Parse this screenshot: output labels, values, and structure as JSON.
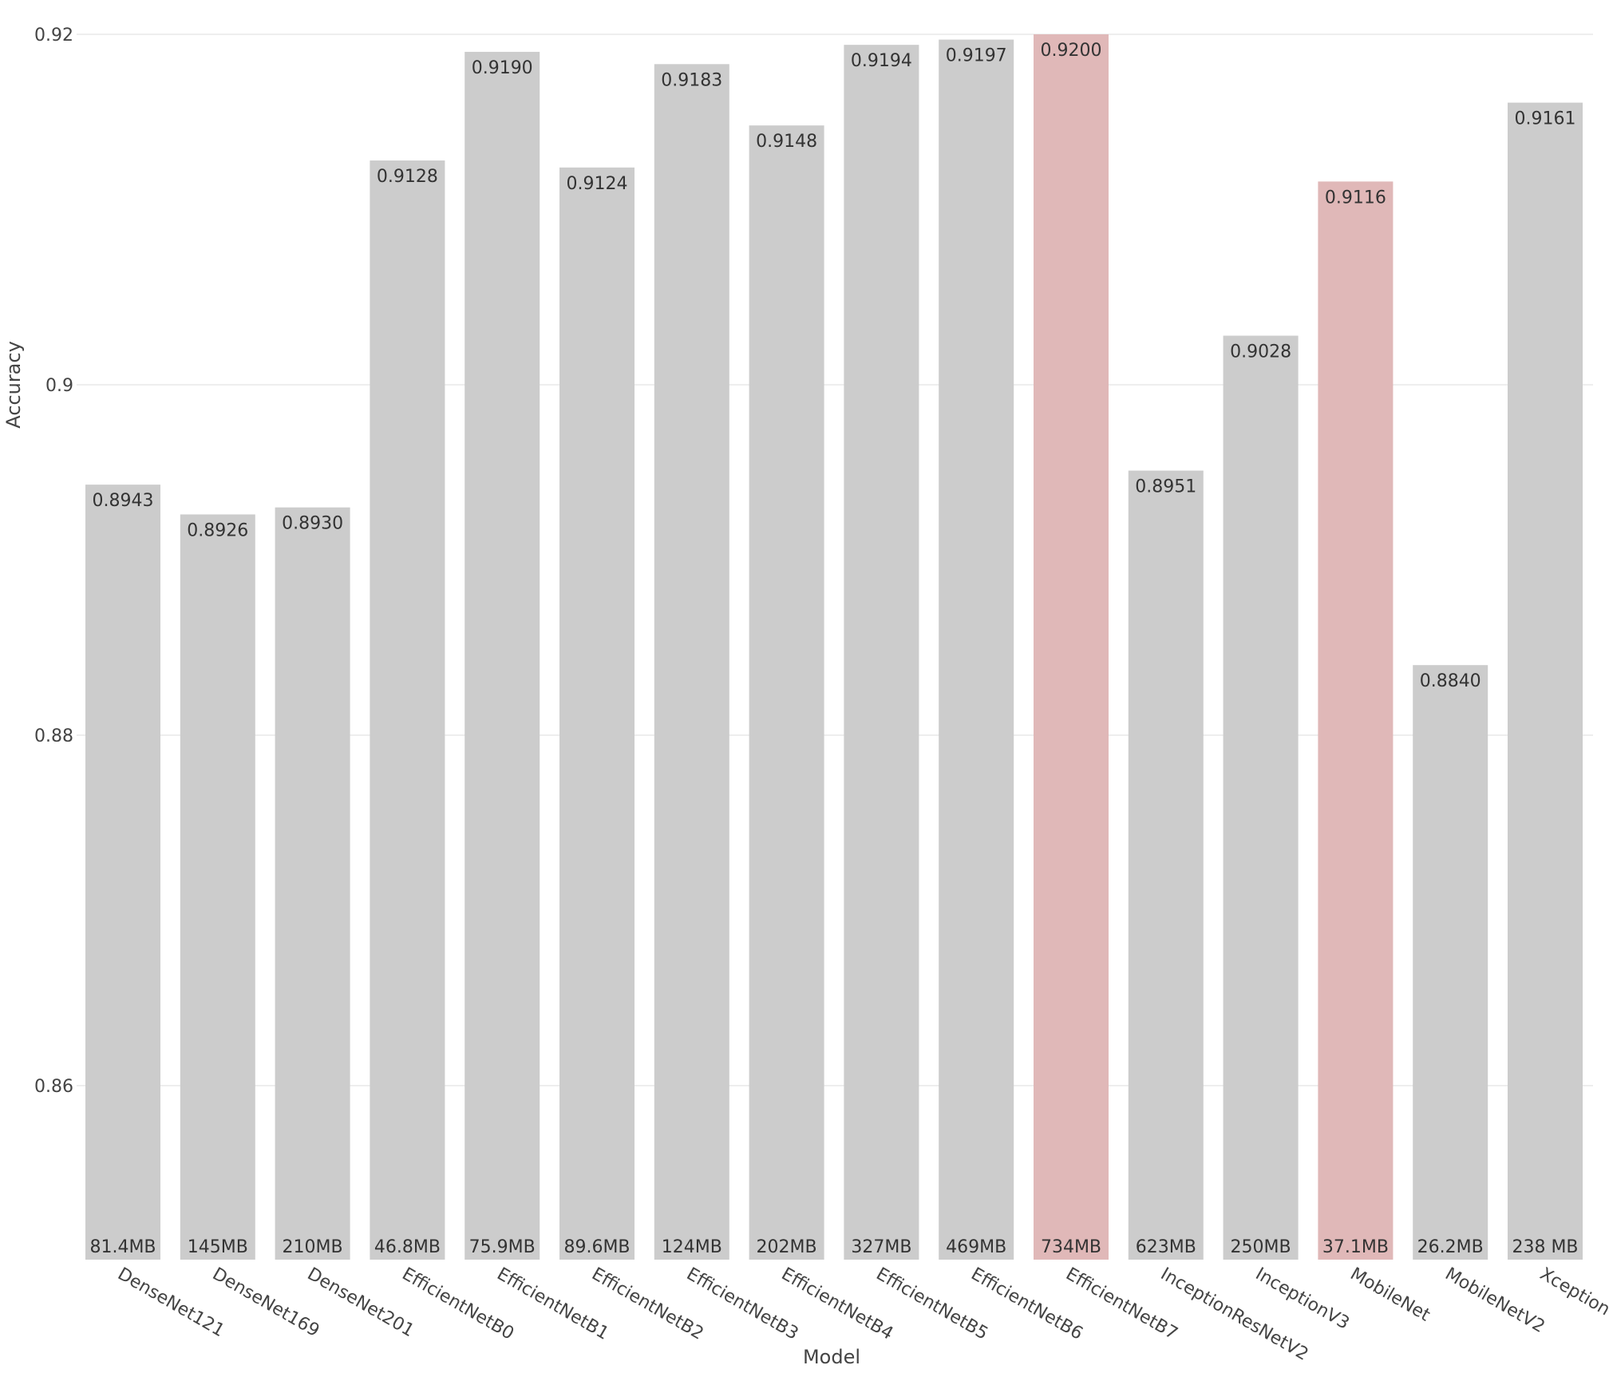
{
  "chart_data": {
    "type": "bar",
    "title": "",
    "xlabel": "Model",
    "ylabel": "Accuracy",
    "ylim": [
      0.85,
      0.92
    ],
    "yticks": [
      "0.86",
      "0.88",
      "0.9",
      "0.92"
    ],
    "grid": true,
    "categories": [
      "DenseNet121",
      "DenseNet169",
      "DenseNet201",
      "EfficientNetB0",
      "EfficientNetB1",
      "EfficientNetB2",
      "EfficientNetB3",
      "EfficientNetB4",
      "EfficientNetB5",
      "EfficientNetB6",
      "EfficientNetB7",
      "InceptionResNetV2",
      "InceptionV3",
      "MobileNet",
      "MobileNetV2",
      "Xception"
    ],
    "values": [
      0.8943,
      0.8926,
      0.893,
      0.9128,
      0.919,
      0.9124,
      0.9183,
      0.9148,
      0.9194,
      0.9197,
      0.92,
      0.8951,
      0.9028,
      0.9116,
      0.884,
      0.9161
    ],
    "value_labels": [
      "0.8943",
      "0.8926",
      "0.8930",
      "0.9128",
      "0.9190",
      "0.9124",
      "0.9183",
      "0.9148",
      "0.9194",
      "0.9197",
      "0.9200",
      "0.8951",
      "0.9028",
      "0.9116",
      "0.8840",
      "0.9161"
    ],
    "size_labels": [
      "81.4MB",
      "145MB",
      "210MB",
      "46.8MB",
      "75.9MB",
      "89.6MB",
      "124MB",
      "202MB",
      "327MB",
      "469MB",
      "734MB",
      "623MB",
      "250MB",
      "37.1MB",
      "26.2MB",
      "238 MB"
    ],
    "highlighted": [
      false,
      false,
      false,
      false,
      false,
      false,
      false,
      false,
      false,
      false,
      true,
      false,
      false,
      true,
      false,
      false
    ],
    "colors": {
      "default": "#cccccc",
      "highlight": "#e0b8b8"
    }
  }
}
